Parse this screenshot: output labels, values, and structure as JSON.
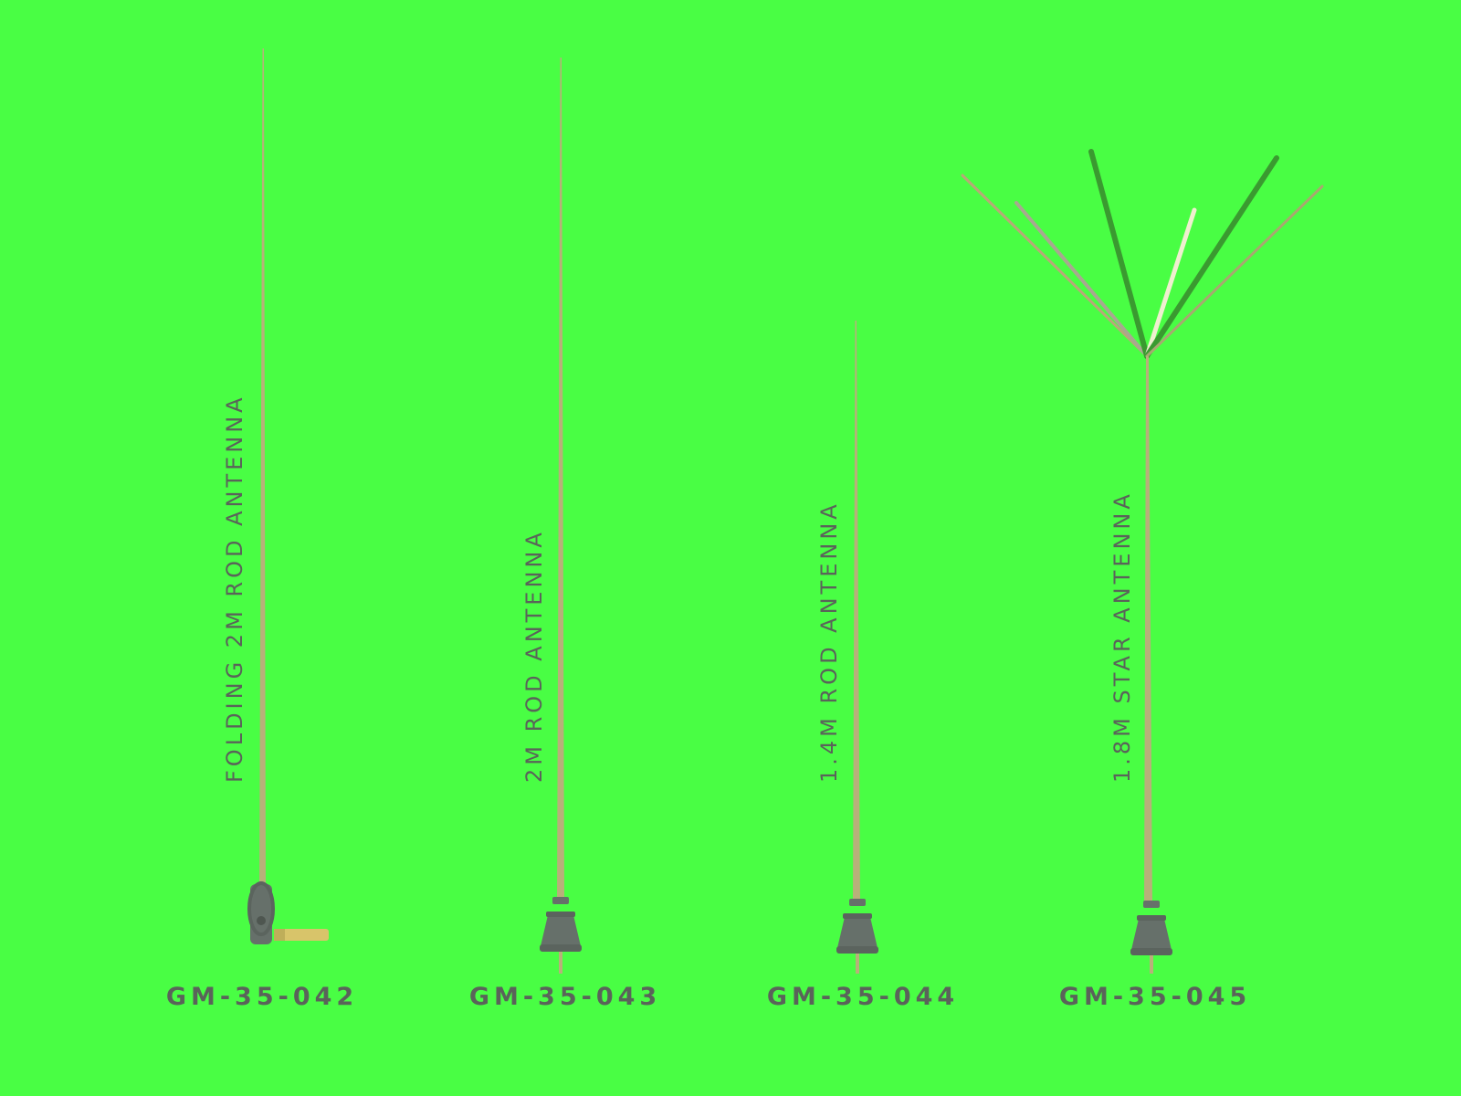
{
  "colors": {
    "background": "#49fe44",
    "text": "#5a635a",
    "rod": "#b8b07a",
    "base": "#66706a",
    "brass": "#d8c46a"
  },
  "products": [
    {
      "code": "GM-35-042",
      "label": "FOLDING 2M ROD ANTENNA",
      "type": "folding-rod"
    },
    {
      "code": "GM-35-043",
      "label": "2M ROD ANTENNA",
      "type": "rod"
    },
    {
      "code": "GM-35-044",
      "label": "1.4M ROD ANTENNA",
      "type": "rod"
    },
    {
      "code": "GM-35-045",
      "label": "1.8M STAR ANTENNA",
      "type": "star"
    }
  ]
}
